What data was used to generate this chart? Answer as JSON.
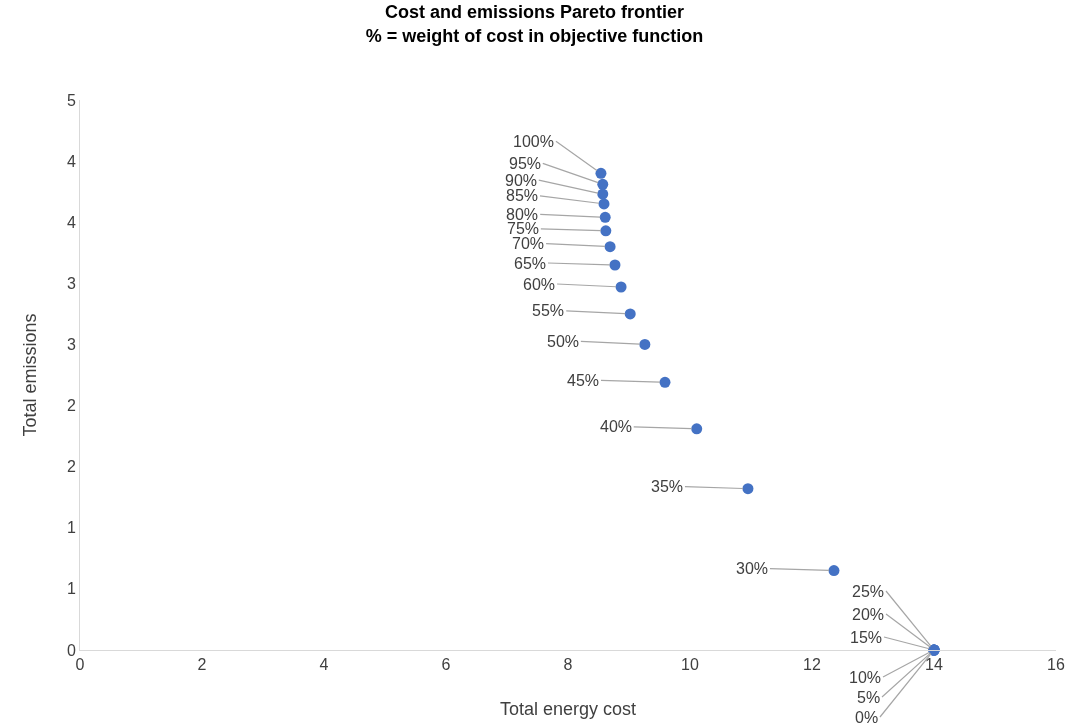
{
  "chart_data": {
    "type": "scatter",
    "title": "Cost and emissions Pareto frontier\n% = weight of cost in objective function",
    "xlabel": "Total energy cost",
    "ylabel": "Total emissions",
    "x": [
      8.54,
      8.57,
      8.57,
      8.59,
      8.61,
      8.62,
      8.69,
      8.77,
      8.87,
      9.02,
      9.26,
      9.59,
      10.11,
      10.95,
      12.36,
      14.0,
      14.0,
      14.0,
      14.0,
      14.0,
      14.0
    ],
    "values": [
      3.9,
      3.81,
      3.73,
      3.65,
      3.54,
      3.43,
      3.3,
      3.15,
      2.97,
      2.75,
      2.5,
      2.19,
      1.81,
      1.32,
      0.65,
      0,
      0,
      0,
      0,
      0,
      0
    ],
    "annotations": [
      {
        "text": "100%",
        "x": 8.54,
        "y": 3.9
      },
      {
        "text": "95%",
        "x": 8.57,
        "y": 3.81
      },
      {
        "text": "90%",
        "x": 8.57,
        "y": 3.73
      },
      {
        "text": "85%",
        "x": 8.59,
        "y": 3.65
      },
      {
        "text": "80%",
        "x": 8.61,
        "y": 3.54
      },
      {
        "text": "75%",
        "x": 8.62,
        "y": 3.43
      },
      {
        "text": "70%",
        "x": 8.69,
        "y": 3.3
      },
      {
        "text": "65%",
        "x": 8.77,
        "y": 3.15
      },
      {
        "text": "60%",
        "x": 8.87,
        "y": 2.97
      },
      {
        "text": "55%",
        "x": 9.02,
        "y": 2.75
      },
      {
        "text": "50%",
        "x": 9.26,
        "y": 2.5
      },
      {
        "text": "45%",
        "x": 9.59,
        "y": 2.19
      },
      {
        "text": "40%",
        "x": 10.11,
        "y": 1.81
      },
      {
        "text": "35%",
        "x": 10.95,
        "y": 1.32
      },
      {
        "text": "30%",
        "x": 12.36,
        "y": 0.65
      },
      {
        "text": "25%",
        "x": 14.0,
        "y": 0
      },
      {
        "text": "20%",
        "x": 14.0,
        "y": 0
      },
      {
        "text": "15%",
        "x": 14.0,
        "y": 0
      },
      {
        "text": "10%",
        "x": 14.0,
        "y": 0
      },
      {
        "text": "5%",
        "x": 14.0,
        "y": 0
      },
      {
        "text": "0%",
        "x": 14.0,
        "y": 0
      }
    ],
    "color": "#4472c4",
    "marker": "circle",
    "xlim": [
      0,
      16
    ],
    "xticks": [
      0,
      2,
      4,
      6,
      8,
      10,
      12,
      14,
      16
    ],
    "ylim": [
      0,
      4.5
    ],
    "yticks": [
      0,
      {
        "value": 0.5,
        "label": "1"
      },
      1,
      {
        "value": 1.5,
        "label": "2"
      },
      2,
      {
        "value": 2.5,
        "label": "3"
      },
      3,
      {
        "value": 3.5,
        "label": "4"
      },
      4,
      {
        "value": 4.5,
        "label": "5"
      }
    ],
    "grid": false
  }
}
